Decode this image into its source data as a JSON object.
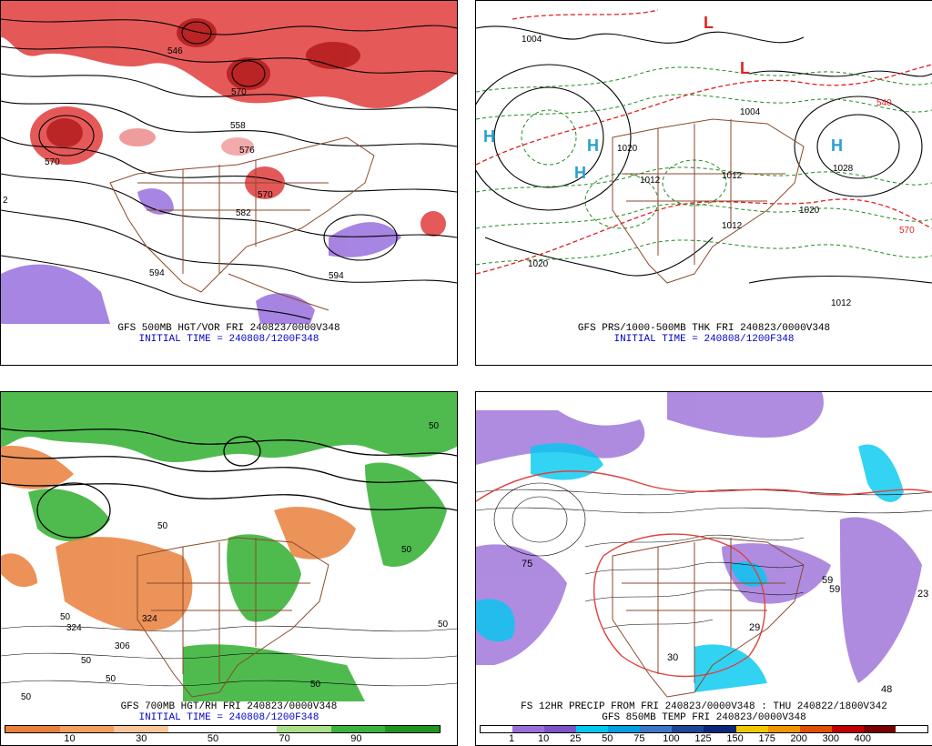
{
  "panels": [
    {
      "caption1": "GFS 500MB HGT/VOR FRI 240823/0000V348",
      "caption2": "INITIAL TIME = 240808/1200F348",
      "labels": [
        "570",
        "546",
        "570",
        "558",
        "576",
        "570",
        "582",
        "594",
        "594",
        "2"
      ]
    },
    {
      "caption1": "GFS PRS/1000-500MB THK FRI 240823/0000V348",
      "caption2": "INITIAL TIME = 240808/1200F348",
      "labels": [
        "1004",
        "1020",
        "1012",
        "1012",
        "1020",
        "1004",
        "1012",
        "1020",
        "1012",
        "1028",
        "570",
        "540",
        "H",
        "H",
        "H",
        "H",
        "L",
        "L"
      ]
    },
    {
      "caption1": "GFS 700MB HGT/RH FRI 240823/0000V348",
      "caption2": "INITIAL TIME = 240808/1200F348",
      "labels": [
        "50",
        "50",
        "50",
        "50",
        "50",
        "50",
        "324",
        "324",
        "306",
        "50",
        "50",
        "50"
      ]
    },
    {
      "caption1": "FS 12HR PRECIP FROM FRI 240823/0000V348 : THU 240822/1800V342",
      "caption2": "GFS 850MB TEMP FRI 240823/0000V348",
      "labels": [
        "75",
        "59",
        "59",
        "23",
        "48",
        "29",
        "30"
      ]
    }
  ],
  "colorbars": {
    "rh": {
      "colors": [
        "#e9803c",
        "#f0a060",
        "#f7c79a",
        "#ffffff",
        "#ffffff",
        "#a8e08c",
        "#3cb43c",
        "#1e961e"
      ],
      "ticks": [
        "10",
        "30",
        "50",
        "70",
        "90"
      ]
    },
    "precip": {
      "colors": [
        "#ffffff",
        "#9b6fd8",
        "#7b55c8",
        "#00c8f0",
        "#00a0e0",
        "#3c78c8",
        "#1e4696",
        "#0a2878",
        "#f0c800",
        "#f09600",
        "#e05000",
        "#c00000",
        "#780000",
        "#ffffff"
      ],
      "ticks": [
        "1",
        "10",
        "25",
        "50",
        "75",
        "100",
        "125",
        "150",
        "175",
        "200",
        "300",
        "400"
      ]
    }
  },
  "colors": {
    "vort": "#d82828",
    "vort_neg": "#8a5cd8",
    "border": "#8b4a2b",
    "thick_blue": "#1e8c1e",
    "thick_red": "#e02020",
    "high": "#28a0d0",
    "caption_blue": "#0000c8"
  }
}
